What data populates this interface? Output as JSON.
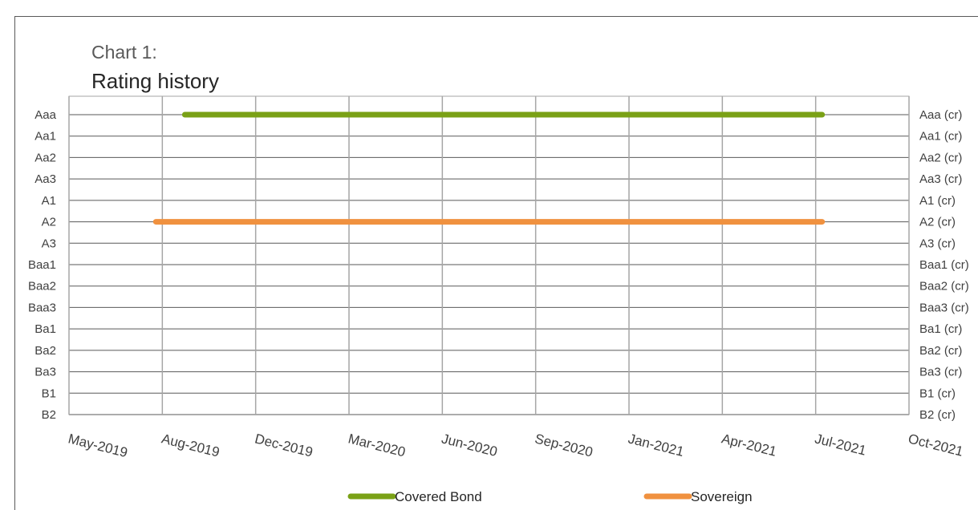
{
  "title": "Chart 1:",
  "subtitle": "Rating history",
  "chart_data": {
    "type": "line",
    "title": "Chart 1:",
    "subtitle": "Rating history",
    "left_axis_ticks": [
      "Aaa",
      "Aa1",
      "Aa2",
      "Aa3",
      "A1",
      "A2",
      "A3",
      "Baa1",
      "Baa2",
      "Baa3",
      "Ba1",
      "Ba2",
      "Ba3",
      "B1",
      "B2"
    ],
    "right_axis_ticks": [
      "Aaa (cr)",
      "Aa1 (cr)",
      "Aa2 (cr)",
      "Aa3 (cr)",
      "A1 (cr)",
      "A2 (cr)",
      "A3 (cr)",
      "Baa1 (cr)",
      "Baa2 (cr)",
      "Baa3 (cr)",
      "Ba1 (cr)",
      "Ba2 (cr)",
      "Ba3 (cr)",
      "B1 (cr)",
      "B2 (cr)"
    ],
    "x_ticks": [
      "May-2019",
      "Aug-2019",
      "Dec-2019",
      "Mar-2020",
      "Jun-2020",
      "Sep-2020",
      "Jan-2021",
      "Apr-2021",
      "Jul-2021",
      "Oct-2021"
    ],
    "x_range_months": [
      "2019-05",
      "2021-10"
    ],
    "grid": true,
    "legend_position": "bottom",
    "series": [
      {
        "name": "Covered Bond",
        "color": "#7aa116",
        "points": [
          {
            "x": "2019-09",
            "y": "Aaa"
          },
          {
            "x": "2021-07",
            "y": "Aaa"
          }
        ]
      },
      {
        "name": "Sovereign",
        "color": "#f0913f",
        "points": [
          {
            "x": "2019-08",
            "y": "A2"
          },
          {
            "x": "2021-07",
            "y": "A2"
          }
        ]
      }
    ]
  }
}
